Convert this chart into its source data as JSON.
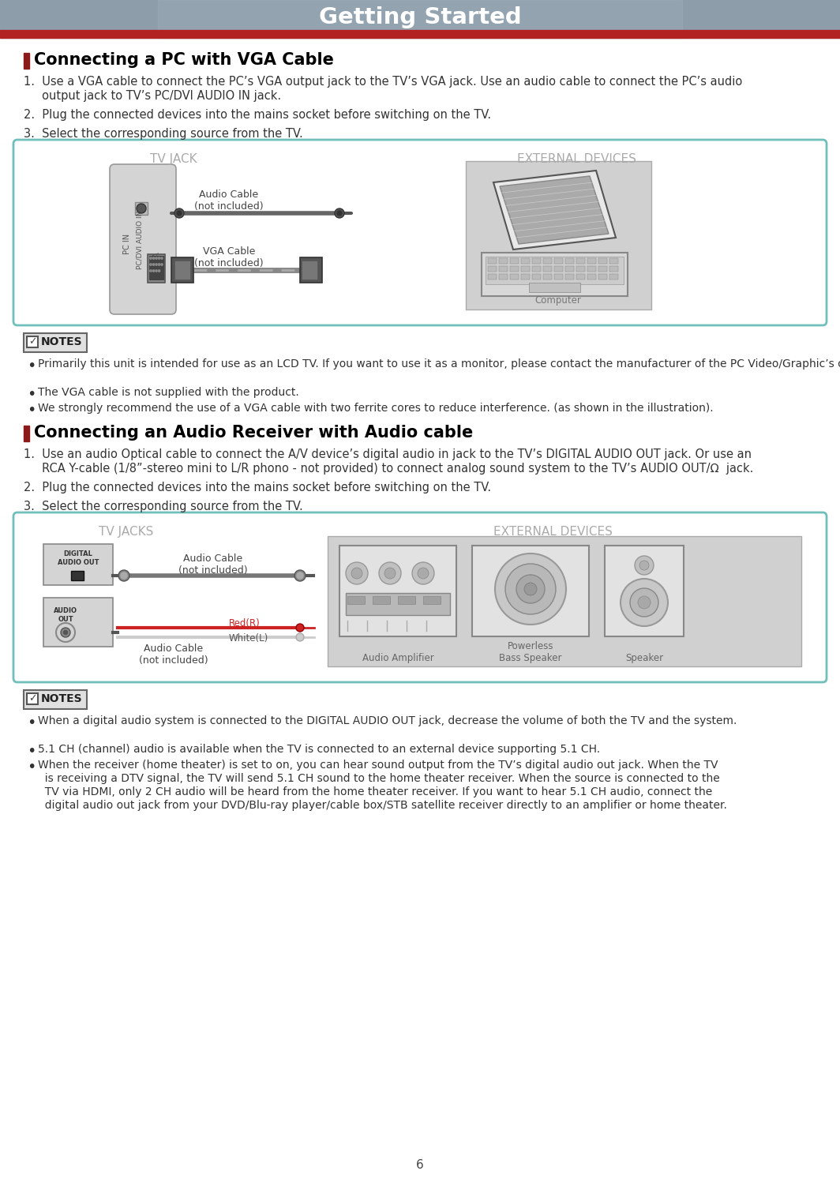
{
  "title": "Getting Started",
  "title_bg_top": "#909eab",
  "title_bg_bottom": "#7a8b98",
  "title_red_bar_color": "#b22222",
  "title_text_color": "#ffffff",
  "page_bg_color": "#ffffff",
  "section1_heading": "Connecting a PC with VGA Cable",
  "section1_step1": "1.  Use a VGA cable to connect the PC’s VGA output jack to the TV’s VGA jack. Use an audio cable to connect the PC’s audio",
  "section1_step1b": "     output jack to TV’s PC/DVI AUDIO IN jack.",
  "section1_step2": "2.  Plug the connected devices into the mains socket before switching on the TV.",
  "section1_step3": "3.  Select the corresponding source from the TV.",
  "diagram1_border_color": "#70bfbb",
  "diagram1_bg": "#ffffff",
  "diagram1_tv_jack_label": "TV JACK",
  "diagram1_ext_devices_label": "EXTERNAL DEVICES",
  "diagram1_audio_cable_label": "Audio Cable\n(not included)",
  "diagram1_vga_cable_label": "VGA Cable\n(not included)",
  "diagram1_computer_label": "Computer",
  "notes1_heading": "NOTES",
  "notes1_bullets": [
    "Primarily this unit is intended for use as an LCD TV. If you want to use it as a monitor, please contact the manufacturer of the PC Video/Graphic’s card for further support. Perfect compatibility is not guaranteed.",
    "The VGA cable is not supplied with the product.",
    "We strongly recommend the use of a VGA cable with two ferrite cores to reduce interference. (as shown in the illustration)."
  ],
  "section2_heading": "Connecting an Audio Receiver with Audio cable",
  "section2_step1": "1.  Use an audio Optical cable to connect the A/V device’s digital audio in jack to the TV’s DIGITAL AUDIO OUT jack. Or use an",
  "section2_step1b": "     RCA Y-cable (1/8”-stereo mini to L/R phono - not provided) to connect analog sound system to the TV’s AUDIO OUT/Ω  jack.",
  "section2_step2": "2.  Plug the connected devices into the mains socket before switching on the TV.",
  "section2_step3": "3.  Select the corresponding source from the TV.",
  "diagram2_border_color": "#70bfbb",
  "diagram2_tv_jacks_label": "TV JACKS",
  "diagram2_ext_devices_label": "EXTERNAL DEVICES",
  "diagram2_digital_audio_out": "DIGITAL\nAUDIO OUT",
  "diagram2_audio_out": "AUDIO\nOUT",
  "diagram2_audio_cable1_label": "Audio Cable\n(not included)",
  "diagram2_audio_cable2_label": "Audio Cable\n(not included)",
  "diagram2_red_label": "Red(R)",
  "diagram2_white_label": "White(L)",
  "diagram2_amp_label": "Audio Amplifier",
  "diagram2_bass_label": "Powerless\nBass Speaker",
  "diagram2_speaker_label": "Speaker",
  "notes2_heading": "NOTES",
  "notes2_bullet1": "When a digital audio system is connected to the DIGITAL AUDIO OUT jack, decrease the volume of both the TV and the system.",
  "notes2_bullet2": "5.1 CH (channel) audio is available when the TV is connected to an external device supporting 5.1 CH.",
  "notes2_bullet3a": "When the receiver (home theater) is set to on, you can hear sound output from the TV’s digital audio out jack. When the TV",
  "notes2_bullet3b": "  is receiving a DTV signal, the TV will send 5.1 CH sound to the home theater receiver. When the source is connected to the",
  "notes2_bullet3c": "  TV via HDMI, only 2 CH audio will be heard from the home theater receiver. If you want to hear 5.1 CH audio, connect the",
  "notes2_bullet3d": "  digital audio out jack from your DVD/Blu-ray player/cable box/STB satellite receiver directly to an amplifier or home theater.",
  "page_number": "6",
  "notes_bg": "#e0e0e0",
  "notes_border": "#666666",
  "label_color": "#aaaaaa",
  "text_color": "#333333",
  "heading_bar_color": "#8b0000"
}
